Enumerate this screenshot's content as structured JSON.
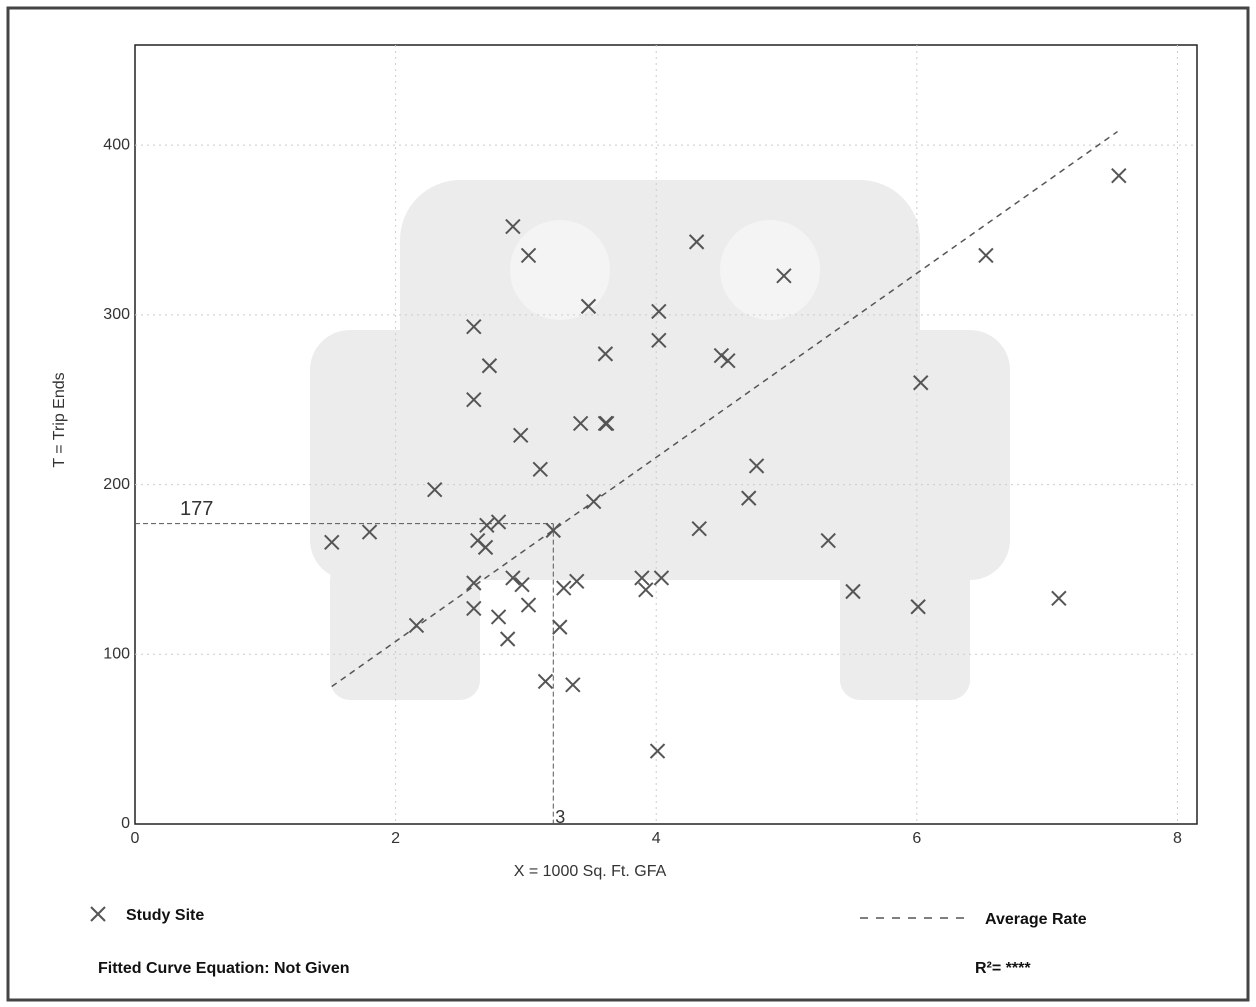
{
  "chart_data": {
    "type": "scatter",
    "x_label": "X = 1000 Sq. Ft. GFA",
    "y_label": "T = Trip Ends",
    "xlim": [
      0,
      8.15
    ],
    "ylim": [
      0,
      459
    ],
    "xticks": [
      0,
      2,
      4,
      6,
      8
    ],
    "yticks": [
      0,
      100,
      200,
      300,
      400
    ],
    "grid": true,
    "series": [
      {
        "name": "Study Site",
        "type": "scatter",
        "color": "#555555",
        "x": [
          1.51,
          1.8,
          2.16,
          2.3,
          2.6,
          2.6,
          2.6,
          2.6,
          2.63,
          2.69,
          2.7,
          2.72,
          2.79,
          2.79,
          2.86,
          2.9,
          2.9,
          2.96,
          2.97,
          3.02,
          3.02,
          3.11,
          3.15,
          3.21,
          3.26,
          3.29,
          3.36,
          3.39,
          3.42,
          3.48,
          3.52,
          3.61,
          3.61,
          3.62,
          3.89,
          3.92,
          4.01,
          4.02,
          4.02,
          4.04,
          4.31,
          4.33,
          4.5,
          4.55,
          4.71,
          4.77,
          4.98,
          5.32,
          5.51,
          6.01,
          6.03,
          6.53,
          7.09,
          7.55
        ],
        "values": [
          166,
          172,
          117,
          197,
          293,
          250,
          142,
          127,
          167,
          163,
          176,
          270,
          178,
          122,
          109,
          352,
          145,
          229,
          141,
          335,
          129,
          209,
          84,
          173,
          116,
          139,
          82,
          143,
          236,
          305,
          190,
          277,
          236,
          236,
          145,
          138,
          43,
          302,
          285,
          145,
          343,
          174,
          276,
          273,
          192,
          211,
          323,
          167,
          137,
          128,
          260,
          335,
          133,
          382
        ]
      },
      {
        "name": "Average Rate",
        "type": "line",
        "color": "#555555",
        "dashed": true,
        "x": [
          1.51,
          7.54
        ],
        "values": [
          81,
          408
        ]
      }
    ],
    "reference": {
      "x": 3.21,
      "x_label": "3",
      "y": 177
    },
    "fitted_curve_equation": "Fitted Curve Equation: Not Given",
    "r_squared": "R²= ****"
  }
}
